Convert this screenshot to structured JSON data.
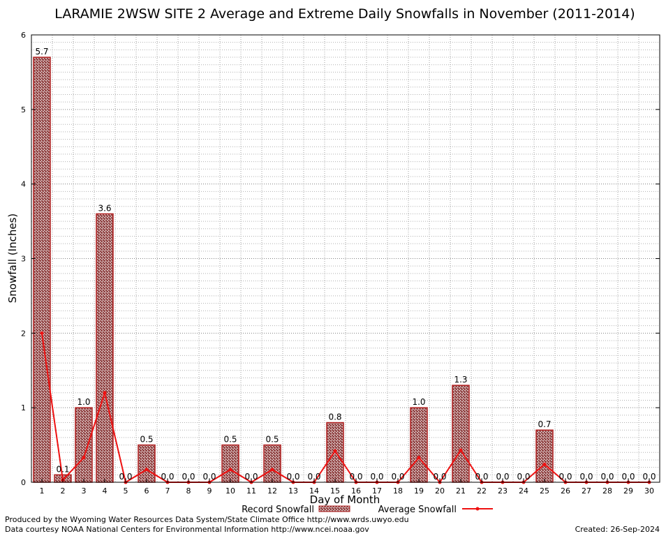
{
  "chart_data": {
    "type": "bar",
    "title": "LARAMIE 2WSW SITE 2 Average and Extreme Daily Snowfalls in November (2011-2014)",
    "xlabel": "Day of Month",
    "ylabel": "Snowfall (Inches)",
    "ylim": [
      0,
      6
    ],
    "yticks": [
      "0",
      "1",
      "2",
      "3",
      "4",
      "5",
      "6"
    ],
    "categories": [
      "1",
      "2",
      "3",
      "4",
      "5",
      "6",
      "7",
      "8",
      "9",
      "10",
      "11",
      "12",
      "13",
      "14",
      "15",
      "16",
      "17",
      "18",
      "19",
      "20",
      "21",
      "22",
      "23",
      "24",
      "25",
      "26",
      "27",
      "28",
      "29",
      "30"
    ],
    "grid": true,
    "legend_position": "bottom",
    "series": [
      {
        "name": "Record Snowfall",
        "type": "bar",
        "color": "#b22222",
        "values": [
          5.7,
          0.1,
          1.0,
          3.6,
          0.0,
          0.5,
          0.0,
          0.0,
          0.0,
          0.5,
          0.0,
          0.5,
          0.0,
          0.0,
          0.8,
          0.0,
          0.0,
          0.0,
          1.0,
          0.0,
          1.3,
          0.0,
          0.0,
          0.0,
          0.7,
          0.0,
          0.0,
          0.0,
          0.0,
          0.0
        ],
        "labels": [
          "5.7",
          "0.1",
          "1.0",
          "3.6",
          "0.0",
          "0.5",
          "0.0",
          "0.0",
          "0.0",
          "0.5",
          "0.0",
          "0.5",
          "0.0",
          "0.0",
          "0.8",
          "0.0",
          "0.0",
          "0.0",
          "1.0",
          "0.0",
          "1.3",
          "0.0",
          "0.0",
          "0.0",
          "0.7",
          "0.0",
          "0.0",
          "0.0",
          "0.0",
          "0.0"
        ]
      },
      {
        "name": "Average Snowfall",
        "type": "line",
        "color": "#ee1111",
        "values": [
          2.0,
          0.03,
          0.33,
          1.2,
          0,
          0.17,
          0,
          0,
          0,
          0.17,
          0,
          0.17,
          0,
          0,
          0.42,
          0,
          0,
          0,
          0.33,
          0,
          0.43,
          0,
          0,
          0,
          0.24,
          0,
          0,
          0,
          0,
          0
        ]
      }
    ]
  },
  "footer": {
    "producer": "Produced by the Wyoming Water Resources Data System/State Climate Office http://www.wrds.uwyo.edu",
    "courtesy": "Data courtesy NOAA National Centers for Environmental Information http://www.ncei.noaa.gov",
    "created": "Created:  26-Sep-2024"
  }
}
